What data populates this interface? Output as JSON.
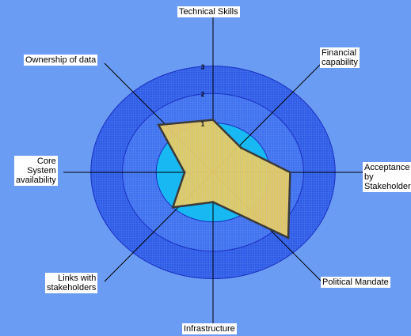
{
  "colors": {
    "background": "#6b9cf4",
    "ring_outer": "#2e5ce6",
    "ring_middle": "#3f72f0",
    "ring_inner": "#18b8f2",
    "ring_stroke": "#1a2fbf",
    "data_fill": "#e7c85c",
    "data_stroke": "#3a3a3a"
  },
  "chart_data": {
    "type": "radar",
    "title": "",
    "rlim": [
      0,
      3
    ],
    "rings": [
      "1",
      "2",
      "3"
    ],
    "categories": [
      "Technical Skills",
      "Financial\ncapability",
      "Acceptance by\nStakeholders",
      "Political Mandate",
      "Infrastructure",
      "Links with\nstakeholders",
      "Core\nSystem\navailability",
      "Ownership of data"
    ],
    "series": [
      {
        "values": [
          1.1,
          0.7,
          1.6,
          2.5,
          0.6,
          1.0,
          0.5,
          1.6
        ]
      }
    ],
    "legend": "none",
    "grid": true
  }
}
